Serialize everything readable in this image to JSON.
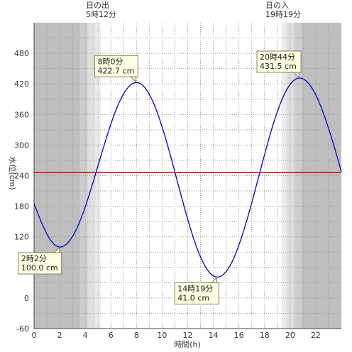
{
  "chart_data": {
    "type": "line",
    "xlabel": "時間(h)",
    "ylabel": "水位(cm)",
    "xlim": [
      0,
      24
    ],
    "ylim": [
      -60,
      540
    ],
    "x_ticks": [
      0,
      2,
      4,
      6,
      8,
      10,
      12,
      14,
      16,
      18,
      20,
      22
    ],
    "y_ticks": [
      -60,
      0,
      60,
      120,
      180,
      240,
      300,
      360,
      420,
      480
    ],
    "grid": true,
    "sunrise": {
      "title": "日の出",
      "time_label": "5時12分",
      "hour": 5.2
    },
    "sunset": {
      "title": "日の入",
      "time_label": "19時19分",
      "hour": 19.317
    },
    "twilight_bands": [
      {
        "from": 0,
        "to": 3.6,
        "shade": "dark"
      },
      {
        "from": 3.6,
        "to": 4.2,
        "shade": "mid"
      },
      {
        "from": 4.2,
        "to": 4.8,
        "shade": "light"
      },
      {
        "from": 4.8,
        "to": 5.2,
        "shade": "pale"
      },
      {
        "from": 19.317,
        "to": 19.7,
        "shade": "pale"
      },
      {
        "from": 19.7,
        "to": 20.3,
        "shade": "light"
      },
      {
        "from": 20.3,
        "to": 20.9,
        "shade": "mid"
      },
      {
        "from": 20.9,
        "to": 24,
        "shade": "dark"
      }
    ],
    "reference_line": {
      "y": 246,
      "color": "#dd0000"
    },
    "series": [
      {
        "color": "#0000cc",
        "extrema": [
          {
            "x": 2.033,
            "y": 100.0
          },
          {
            "x": 8.0,
            "y": 422.7
          },
          {
            "x": 14.317,
            "y": 41.0
          },
          {
            "x": 20.733,
            "y": 431.5
          }
        ],
        "start": {
          "x": 0,
          "y": 185
        },
        "end": {
          "x": 24,
          "y": 248
        }
      }
    ],
    "annotations": [
      {
        "line1": "2時2分",
        "line2": "100.0 cm",
        "x": 2.033,
        "y": 100.0,
        "placement": "below-left"
      },
      {
        "line1": "8時0分",
        "line2": "422.7 cm",
        "x": 8.0,
        "y": 422.7,
        "placement": "above-left"
      },
      {
        "line1": "14時19分",
        "line2": "41.0 cm",
        "x": 14.317,
        "y": 41.0,
        "placement": "below-left"
      },
      {
        "line1": "20時44分",
        "line2": "431.5 cm",
        "x": 20.733,
        "y": 431.5,
        "placement": "above-left"
      }
    ]
  },
  "colors": {
    "dark": "#bebebe",
    "mid": "#cdcdcd",
    "light": "#dedede",
    "pale": "#ececec",
    "grid": "#9a9a9a",
    "axis": "#444444"
  }
}
